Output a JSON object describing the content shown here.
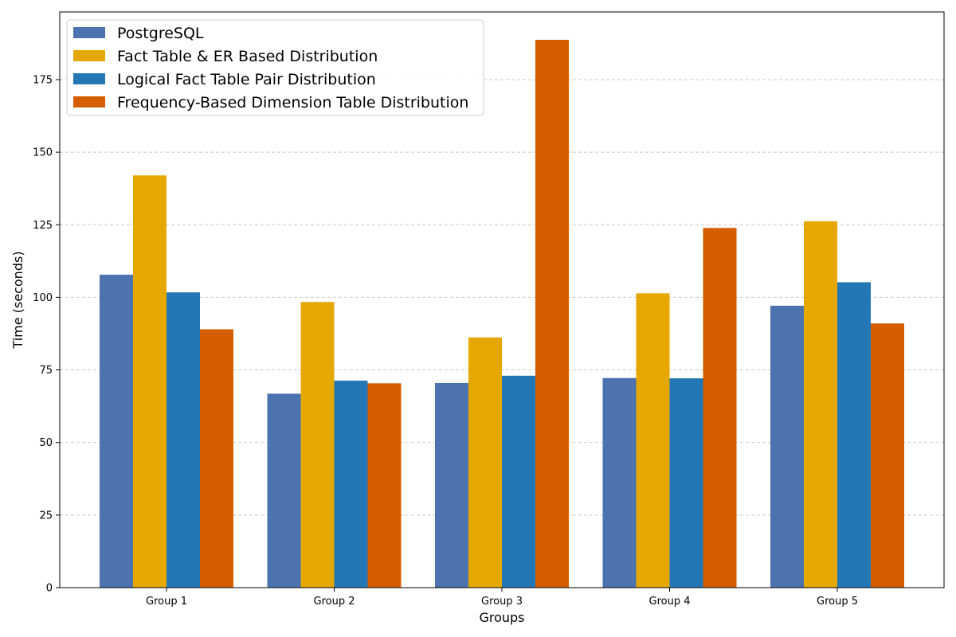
{
  "chart_data": {
    "type": "bar",
    "title": "",
    "xlabel": "Groups",
    "ylabel": "Time (seconds)",
    "ylim": [
      0,
      198.3
    ],
    "yticks": [
      0,
      25,
      50,
      75,
      100,
      125,
      150,
      175
    ],
    "grid": "y-dashed",
    "legend_position": "top-left",
    "categories": [
      "Group 1",
      "Group 2",
      "Group 3",
      "Group 4",
      "Group 5"
    ],
    "series": [
      {
        "name": "PostgreSQL",
        "color": "#4c72b0",
        "values": [
          107.8,
          66.8,
          70.5,
          72.2,
          97.1
        ]
      },
      {
        "name": "Fact Table & ER Based Distribution",
        "color": "#e5a800",
        "values": [
          142.0,
          98.4,
          86.2,
          101.4,
          126.2
        ]
      },
      {
        "name": "Logical Fact Table Pair Distribution",
        "color": "#2277b4",
        "values": [
          101.7,
          71.3,
          73.0,
          72.1,
          105.2
        ]
      },
      {
        "name": "Frequency-Based Dimension Table Distribution",
        "color": "#d55e00",
        "values": [
          89.0,
          70.4,
          188.7,
          123.9,
          91.0
        ]
      }
    ]
  }
}
